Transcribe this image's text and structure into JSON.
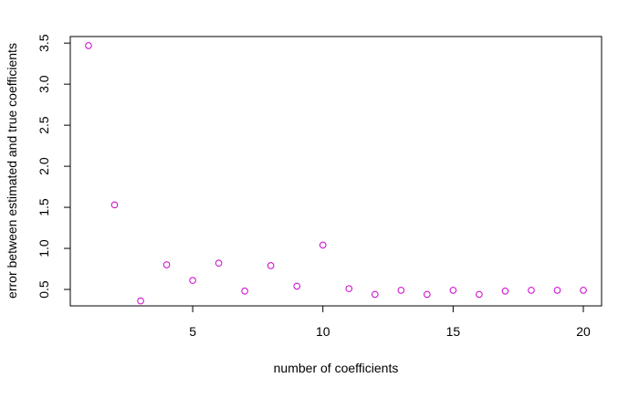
{
  "chart_data": {
    "type": "scatter",
    "title": "",
    "xlabel": "number of coefficients",
    "ylabel": "error between estimated and true coefficients",
    "xlim": [
      0.3,
      20.7
    ],
    "ylim": [
      0.3,
      3.58
    ],
    "xticks": [
      5,
      10,
      15,
      20
    ],
    "yticks": [
      0.5,
      1.0,
      1.5,
      2.0,
      2.5,
      3.0,
      3.5
    ],
    "xtick_labels": [
      "5",
      "10",
      "15",
      "20"
    ],
    "ytick_labels": [
      "0.5",
      "1.0",
      "1.5",
      "2.0",
      "2.5",
      "3.0",
      "3.5"
    ],
    "grid": false,
    "legend": "none",
    "marker": "open-circle",
    "marker_color": "#cc00cc",
    "series": [
      {
        "x": [
          1,
          2,
          3,
          4,
          5,
          6,
          7,
          8,
          9,
          10,
          11,
          12,
          13,
          14,
          15,
          16,
          17,
          18,
          19,
          20
        ],
        "y": [
          3.47,
          1.53,
          0.36,
          0.8,
          0.61,
          0.82,
          0.48,
          0.79,
          0.54,
          1.04,
          0.51,
          0.44,
          0.49,
          0.44,
          0.49,
          0.44,
          0.48,
          0.49,
          0.49,
          0.49
        ]
      }
    ]
  }
}
